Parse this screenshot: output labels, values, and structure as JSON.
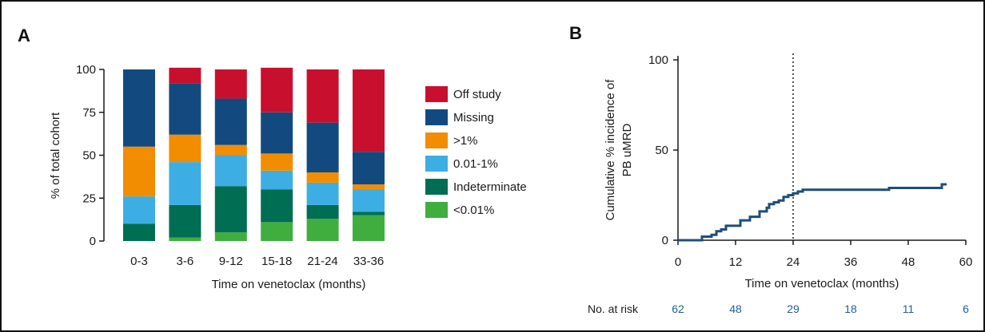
{
  "panels": {
    "a": "A",
    "b": "B"
  },
  "chart_data": [
    {
      "type": "bar",
      "stacked": true,
      "categories": [
        "0-3",
        "3-6",
        "9-12",
        "15-18",
        "21-24",
        "33-36"
      ],
      "ylabel": "% of total cohort",
      "xlabel": "Time on venetoclax (months)",
      "ylim": [
        0,
        100
      ],
      "yticks": [
        0,
        25,
        50,
        75,
        100
      ],
      "legend_position": "right",
      "series": [
        {
          "name": "<0.01%",
          "color": "#3fae3f",
          "values": [
            0,
            2,
            5,
            11,
            13,
            15
          ]
        },
        {
          "name": "Indeterminate",
          "color": "#006e52",
          "values": [
            10,
            19,
            27,
            19,
            8,
            2
          ]
        },
        {
          "name": "0.01-1%",
          "color": "#3caee3",
          "values": [
            16,
            25,
            18,
            11,
            13,
            13
          ]
        },
        {
          "name": ">1%",
          "color": "#f28c00",
          "values": [
            29,
            16,
            6,
            10,
            6,
            3
          ]
        },
        {
          "name": "Missing",
          "color": "#124a80",
          "values": [
            45,
            30,
            27,
            24,
            29,
            19
          ]
        },
        {
          "name": "Off study",
          "color": "#c8102e",
          "values": [
            0,
            9,
            17,
            26,
            31,
            48
          ]
        }
      ],
      "legend_order": [
        "Off study",
        "Missing",
        ">1%",
        "0.01-1%",
        "Indeterminate",
        "<0.01%"
      ]
    },
    {
      "type": "line",
      "step": true,
      "ylabel": "Cumulative % incidence of PB uMRD",
      "ylabel_lines": [
        "Cumulative % incidence of",
        "PB uMRD"
      ],
      "xlabel": "Time on venetoclax (months)",
      "xlim": [
        0,
        60
      ],
      "ylim": [
        0,
        100
      ],
      "xticks": [
        0,
        12,
        24,
        36,
        48,
        60
      ],
      "yticks": [
        0,
        50,
        100
      ],
      "reference_line_x": 24,
      "series": [
        {
          "color": "#1f4e79",
          "x": [
            0,
            5,
            7,
            8,
            9,
            10,
            12,
            13,
            14,
            15,
            16,
            17,
            18,
            18.5,
            19,
            20,
            21,
            22,
            23,
            24,
            25,
            26,
            43,
            44,
            55,
            56
          ],
          "y": [
            0,
            2,
            3,
            5,
            6,
            8,
            8,
            11,
            11,
            13,
            13,
            16,
            16,
            18,
            20,
            21,
            22,
            24,
            25,
            26,
            27,
            28,
            28,
            29,
            31,
            31
          ]
        }
      ],
      "at_risk": {
        "label": "No. at risk",
        "values": [
          "62",
          "48",
          "29",
          "18",
          "11",
          "6"
        ],
        "color": "#1f5f99"
      }
    }
  ]
}
